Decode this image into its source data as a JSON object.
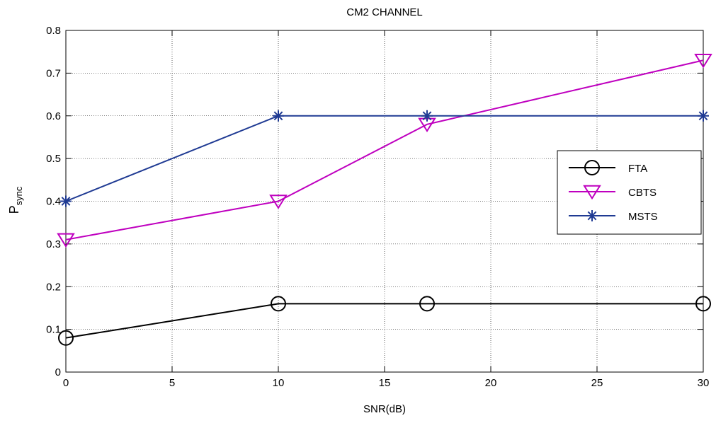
{
  "chart_data": {
    "type": "line",
    "title": "CM2 CHANNEL",
    "xlabel": "SNR(dB)",
    "ylabel_main": "P",
    "ylabel_sub": "sync",
    "xlim": [
      0,
      30
    ],
    "ylim": [
      0,
      0.8
    ],
    "xticks": [
      0,
      5,
      10,
      15,
      20,
      25,
      30
    ],
    "yticks": [
      0,
      0.1,
      0.2,
      0.3,
      0.4,
      0.5,
      0.6,
      0.7,
      0.8
    ],
    "grid": true,
    "legend_position": "right",
    "series": [
      {
        "name": "FTA",
        "color": "#000000",
        "marker": "circle",
        "x": [
          0,
          10,
          17,
          30
        ],
        "y": [
          0.08,
          0.16,
          0.16,
          0.16
        ]
      },
      {
        "name": "CBTS",
        "color": "#BF00BF",
        "marker": "triangle-down",
        "x": [
          0,
          10,
          17,
          30
        ],
        "y": [
          0.31,
          0.4,
          0.58,
          0.73
        ]
      },
      {
        "name": "MSTS",
        "color": "#1F3A93",
        "marker": "asterisk",
        "x": [
          0,
          10,
          17,
          30
        ],
        "y": [
          0.4,
          0.6,
          0.6,
          0.6
        ]
      }
    ]
  }
}
